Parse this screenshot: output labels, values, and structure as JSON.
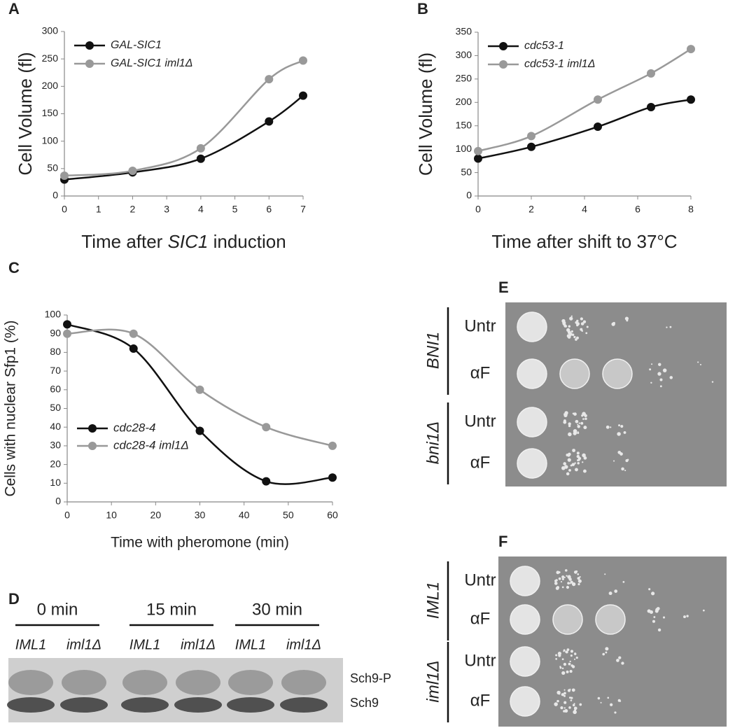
{
  "chart_data": [
    {
      "panel": "A",
      "type": "line",
      "x": [
        0,
        2,
        4,
        6,
        7
      ],
      "xlim": [
        0,
        7
      ],
      "xticks": [
        0,
        1,
        2,
        3,
        4,
        5,
        6,
        7
      ],
      "ylim": [
        0,
        300
      ],
      "yticks": [
        0,
        50,
        100,
        150,
        200,
        250,
        300
      ],
      "x_label": [
        "Time after ",
        "SIC1",
        " induction"
      ],
      "y_label": "Cell Volume (fl)",
      "legend": "upper left",
      "smooth": true,
      "series": [
        {
          "name": "GAL-SIC1",
          "color": "#111111",
          "values": [
            30,
            43,
            68,
            136,
            183
          ]
        },
        {
          "name": "GAL-SIC1 iml1Δ",
          "color": "#999999",
          "values": [
            37,
            46,
            87,
            213,
            247
          ]
        }
      ]
    },
    {
      "panel": "B",
      "type": "line",
      "x": [
        0,
        2,
        4.5,
        6.5,
        8
      ],
      "xlim": [
        0,
        8
      ],
      "xticks": [
        0,
        2,
        4,
        6,
        8
      ],
      "ylim": [
        0,
        350
      ],
      "yticks": [
        0,
        50,
        100,
        150,
        200,
        250,
        300,
        350
      ],
      "x_label": "Time after shift to 37°C",
      "y_label": "Cell Volume (fl)",
      "legend": "upper left",
      "smooth": true,
      "series": [
        {
          "name": "cdc53-1",
          "color": "#111111",
          "values": [
            80,
            105,
            148,
            190,
            206
          ]
        },
        {
          "name": "cdc53-1 iml1Δ",
          "color": "#999999",
          "values": [
            96,
            128,
            206,
            262,
            314
          ]
        }
      ]
    },
    {
      "panel": "C",
      "type": "line",
      "x": [
        0,
        15,
        30,
        45,
        60
      ],
      "xlim": [
        0,
        60
      ],
      "xticks": [
        0,
        10,
        20,
        30,
        40,
        50,
        60
      ],
      "ylim": [
        0,
        100
      ],
      "yticks": [
        0,
        10,
        20,
        30,
        40,
        50,
        60,
        70,
        80,
        90,
        100
      ],
      "x_label": "Time with pheromone (min)",
      "y_label": "Cells with nuclear Sfp1 (%)",
      "legend": "lower left",
      "smooth": true,
      "series": [
        {
          "name": "cdc28-4",
          "color": "#111111",
          "values": [
            95,
            82,
            38,
            11,
            13
          ]
        },
        {
          "name": "cdc28-4 iml1Δ",
          "color": "#999999",
          "values": [
            90,
            90,
            60,
            40,
            30
          ]
        }
      ]
    }
  ],
  "blot": {
    "panel": "D",
    "timepoints": [
      {
        "label": "0 min",
        "lanes": [
          "IML1",
          "iml1Δ"
        ]
      },
      {
        "label": "15 min",
        "lanes": [
          "IML1",
          "iml1Δ"
        ]
      },
      {
        "label": "30 min",
        "lanes": [
          "IML1",
          "iml1Δ"
        ]
      }
    ],
    "bands": [
      "Sch9-P",
      "Sch9"
    ]
  },
  "plates": [
    {
      "panel": "E",
      "strains": [
        {
          "name": "BNI1",
          "treatments": [
            "Untr",
            "αF"
          ]
        },
        {
          "name": "bni1Δ",
          "treatments": [
            "Untr",
            "αF"
          ]
        }
      ]
    },
    {
      "panel": "F",
      "strains": [
        {
          "name": "IML1",
          "treatments": [
            "Untr",
            "αF"
          ]
        },
        {
          "name": "iml1Δ",
          "treatments": [
            "Untr",
            "αF"
          ]
        }
      ]
    }
  ]
}
